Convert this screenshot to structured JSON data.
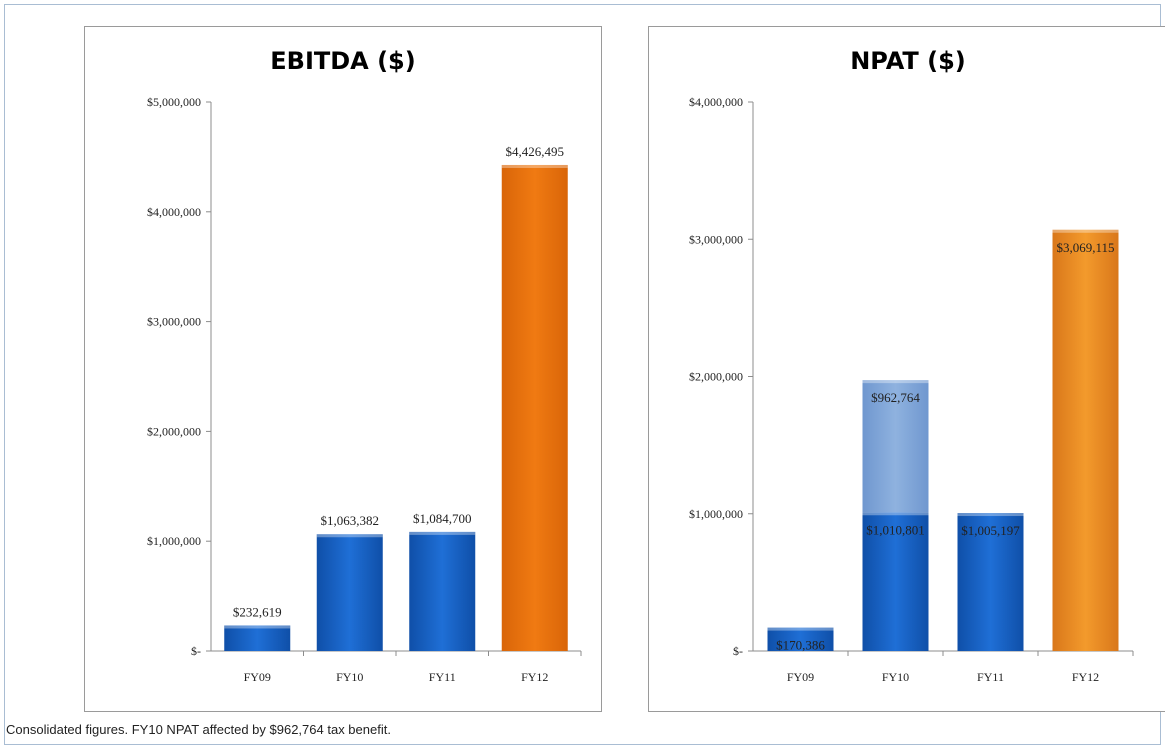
{
  "colors": {
    "blue": "#1f6fd6",
    "blue_dark": "#0f4fa8",
    "orange": "#f07a12",
    "orange_npat": "#f39a2c",
    "tax_benefit": "#8fb2df"
  },
  "caption": "Consolidated figures. FY10 NPAT affected by $962,764 tax benefit.",
  "chart_data": [
    {
      "type": "bar",
      "title": "EBITDA ($)",
      "categories": [
        "FY09",
        "FY10",
        "FY11",
        "FY12"
      ],
      "values": [
        232619,
        1063382,
        1084700,
        4426495
      ],
      "value_labels": [
        "$232,619",
        "$1,063,382",
        "$1,084,700",
        "$4,426,495"
      ],
      "bar_colors": [
        "blue",
        "blue",
        "blue",
        "orange"
      ],
      "ylim": [
        0,
        5000000
      ],
      "yticks": [
        0,
        1000000,
        2000000,
        3000000,
        4000000,
        5000000
      ],
      "ytick_labels": [
        "$-",
        "$1,000,000",
        "$2,000,000",
        "$3,000,000",
        "$4,000,000",
        "$5,000,000"
      ],
      "xlabel": "",
      "ylabel": "",
      "grid": false
    },
    {
      "type": "bar",
      "stacked": true,
      "title": "NPAT ($)",
      "categories": [
        "FY09",
        "FY10",
        "FY11",
        "FY12"
      ],
      "series": [
        {
          "values": [
            170386,
            1010801,
            1005197,
            3069115
          ],
          "value_labels": [
            "$170,386",
            "$1,010,801",
            "$1,005,197",
            "$3,069,115"
          ],
          "bar_colors": [
            "blue",
            "blue",
            "blue",
            "orange_npat"
          ]
        },
        {
          "values": [
            0,
            962764,
            0,
            0
          ],
          "value_labels": [
            "",
            "$962,764",
            "",
            ""
          ],
          "bar_colors": [
            "tax_benefit",
            "tax_benefit",
            "tax_benefit",
            "tax_benefit"
          ]
        }
      ],
      "ylim": [
        0,
        4000000
      ],
      "yticks": [
        0,
        1000000,
        2000000,
        3000000,
        4000000
      ],
      "ytick_labels": [
        "$-",
        "$1,000,000",
        "$2,000,000",
        "$3,000,000",
        "$4,000,000"
      ],
      "xlabel": "",
      "ylabel": "",
      "grid": false
    }
  ]
}
